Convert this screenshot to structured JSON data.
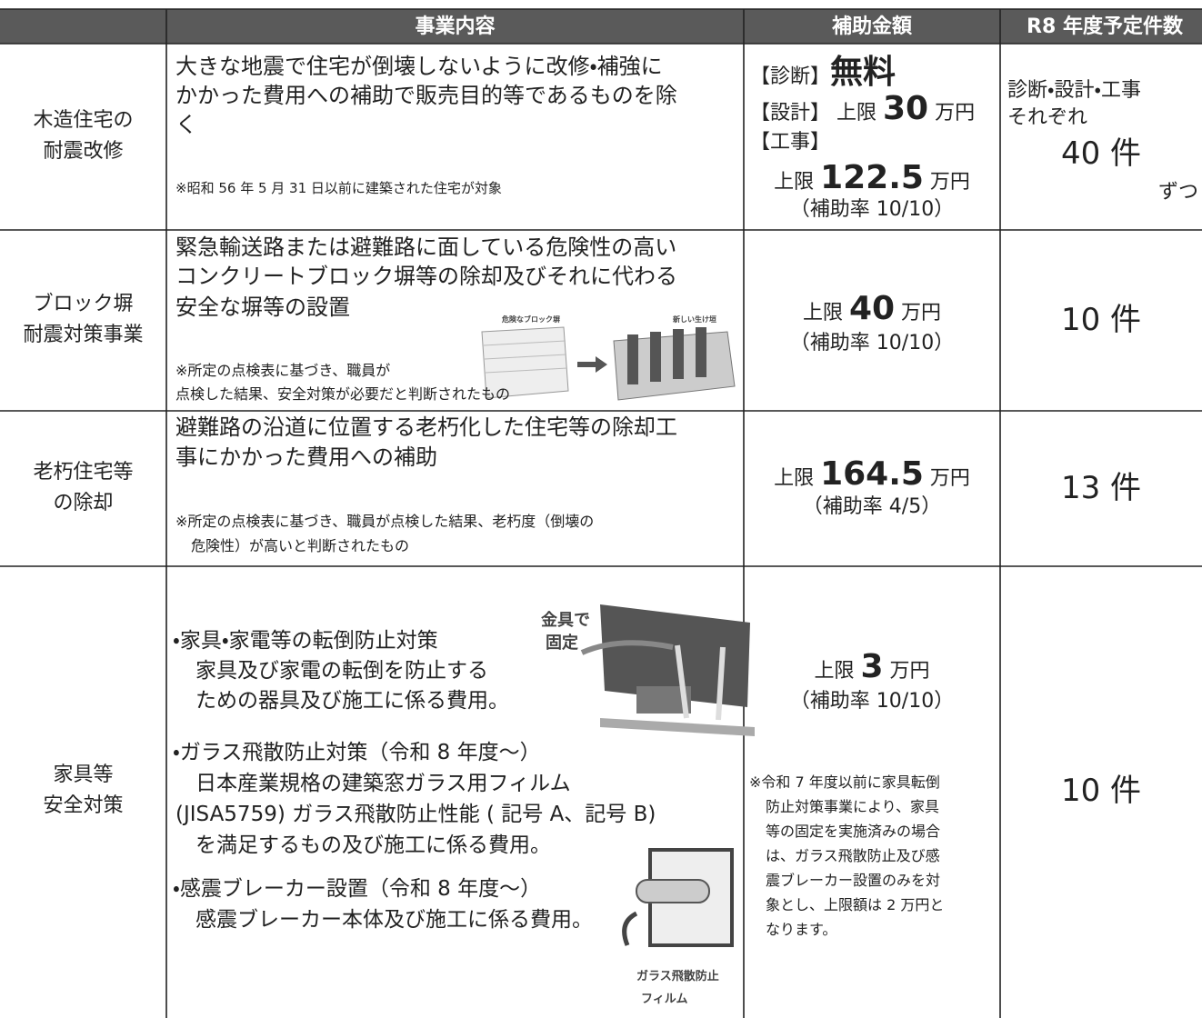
{
  "header": {
    "content": "事業内容",
    "amount": "補助金額",
    "count": "R8 年度予定件数"
  },
  "rows": [
    {
      "name": [
        "木造住宅の",
        "耐震改修"
      ],
      "content": [
        "大きな地震で住宅が倒壊しないように改修・補強に",
        "かかった費用への補助で販売目的等であるものを除",
        "く"
      ],
      "note": [
        "※昭和 56 年 5 月 31 日以前に建築された住宅が対象"
      ],
      "amount": [
        [
          "【診断】",
          "無料"
        ],
        [
          "【設計】 上限 ",
          "30",
          " 万円"
        ],
        [
          "【工事】"
        ],
        [
          "上限 ",
          "122.5",
          " 万円"
        ],
        [
          "（補助率 10/10）"
        ]
      ],
      "count": [
        "診断・設計・工事",
        "それぞれ",
        "40 件",
        "ずつ"
      ]
    },
    {
      "name": [
        "ブロック塀",
        "耐震対策事業"
      ],
      "content": [
        "緊急輸送路または避難路に面している危険性の高い",
        "コンクリートブロック塀等の除却及びそれに代わる",
        "安全な塀等の設置"
      ],
      "note": [
        "※所定の点検表に基づき、職員が",
        "点検した結果、安全対策が必要だと判断されたもの"
      ],
      "image_labels": [
        "危険なブロック塀",
        "新しい生け垣"
      ],
      "amount": [
        [
          "上限 ",
          "40",
          " 万円"
        ],
        [
          "（補助率 10/10）"
        ]
      ],
      "count": [
        "10 件"
      ]
    },
    {
      "name": [
        "老朽住宅等",
        "の除却"
      ],
      "content": [
        "避難路の沿道に位置する老朽化した住宅等の除却工",
        "事にかかった費用への補助"
      ],
      "note": [
        "※所定の点検表に基づき、職員が点検した結果、老朽度（倒壊の",
        "危険性）が高いと判断されたもの"
      ],
      "amount": [
        [
          "上限 ",
          "164.5",
          " 万円"
        ],
        [
          "（補助率 4/5）"
        ]
      ],
      "count": [
        "13 件"
      ]
    },
    {
      "name": [
        "家具等",
        "安全対策"
      ],
      "content": [
        "・家具・家電等の転倒防止対策",
        "家具及び家電の転倒を防止する",
        "ための器具及び施工に係る費用。",
        "・ガラス飛散防止対策（令和 8 年度～）",
        "日本産業規格の建築窓ガラス用フィルム",
        "(JISA5759) ガラス飛散防止性能 ( 記号 A、記号 B)",
        "を満足するもの及び施工に係る費用。",
        "・感震ブレーカー設置（令和 8 年度～）",
        "感震ブレーカー本体及び施工に係る費用。"
      ],
      "image_labels": [
        "金具で",
        "固定",
        "ガラス飛散防止",
        "フィルム"
      ],
      "amount": [
        [
          "上限 ",
          "3",
          " 万円"
        ],
        [
          "（補助率 10/10）"
        ]
      ],
      "amount_note": [
        "※令和 7 年度以前に家具転倒",
        "防止対策事業により、家具",
        "等の固定を実施済みの場合",
        "は、ガラス飛散防止及び感",
        "震ブレーカー設置のみを対",
        "象とし、上限額は 2 万円と",
        "なります。"
      ],
      "count": [
        "10 件"
      ]
    }
  ]
}
